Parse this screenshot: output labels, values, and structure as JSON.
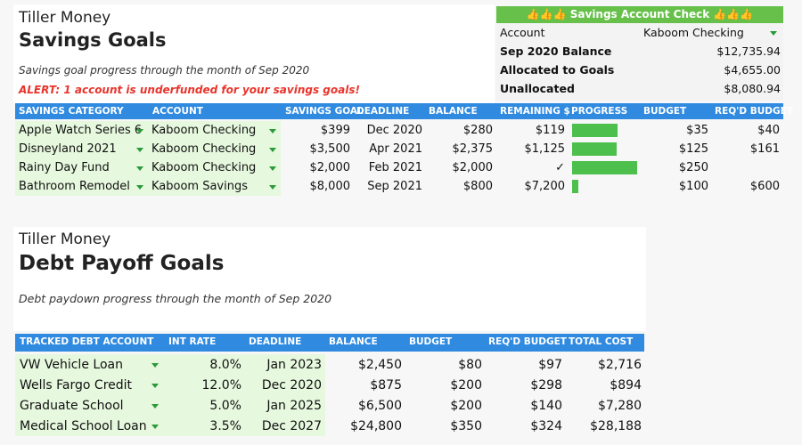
{
  "savings": {
    "brand": "Tiller Money",
    "title": "Savings Goals",
    "subtitle": "Savings goal progress through the month of Sep 2020",
    "alert": "ALERT: 1 account is underfunded for your savings goals!",
    "check": {
      "title": "👍👍👍 Savings Account Check 👍👍👍",
      "rows": [
        [
          "Account",
          "Kaboom Checking"
        ],
        [
          "Sep 2020 Balance",
          "$12,735.94"
        ],
        [
          "Allocated to Goals",
          "$4,655.00"
        ],
        [
          "Unallocated",
          "$8,080.94"
        ]
      ]
    },
    "table": {
      "columns": [
        "SAVINGS CATEGORY",
        "ACCOUNT",
        "SAVINGS GOAL",
        "DEADLINE",
        "BALANCE",
        "REMAINING $",
        "PROGRESS",
        "BUDGET",
        "REQ'D BUDGET"
      ],
      "rows": [
        [
          "Apple Watch Series 6",
          "Kaboom Checking",
          "$399",
          "Dec 2020",
          "$280",
          "$119",
          70,
          "$35",
          "$40"
        ],
        [
          "Disneyland 2021",
          "Kaboom Checking",
          "$3,500",
          "Apr 2021",
          "$2,375",
          "$1,125",
          68,
          "$125",
          "$161"
        ],
        [
          "Rainy Day Fund",
          "Kaboom Checking",
          "$2,000",
          "Feb 2021",
          "$2,000",
          "✓",
          100,
          "$250",
          null
        ],
        [
          "Bathroom Remodel",
          "Kaboom Savings",
          "$8,000",
          "Sep 2021",
          "$800",
          "$7,200",
          10,
          "$100",
          "$600"
        ]
      ]
    }
  },
  "debt": {
    "brand": "Tiller Money",
    "title": "Debt Payoff Goals",
    "subtitle": "Debt paydown progress through the month of Sep 2020",
    "table": {
      "columns": [
        "TRACKED DEBT ACCOUNT",
        "INT RATE",
        "DEADLINE",
        "BALANCE",
        "BUDGET",
        "REQ'D BUDGET",
        "TOTAL COST"
      ],
      "rows": [
        [
          "VW Vehicle Loan",
          "8.0%",
          "Jan 2023",
          "$2,450",
          "$80",
          "$97",
          "$2,716"
        ],
        [
          "Wells Fargo Credit",
          "12.0%",
          "Dec 2020",
          "$875",
          "$200",
          "$298",
          "$894"
        ],
        [
          "Graduate School",
          "5.0%",
          "Jan 2025",
          "$6,500",
          "$200",
          "$140",
          "$7,280"
        ],
        [
          "Medical School Loan",
          "3.5%",
          "Dec 2027",
          "$24,800",
          "$350",
          "$324",
          "$28,188"
        ]
      ]
    }
  }
}
